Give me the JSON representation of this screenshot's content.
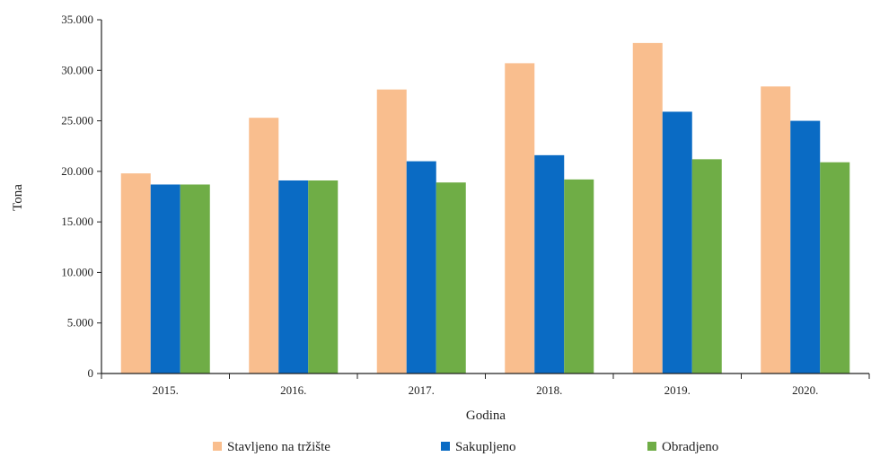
{
  "chart_data": {
    "type": "bar",
    "title": "",
    "xlabel": "Godina",
    "ylabel": "Tona",
    "categories": [
      "2015.",
      "2016.",
      "2017.",
      "2018.",
      "2019.",
      "2020."
    ],
    "ylim": [
      0,
      35000
    ],
    "yticks": [
      0,
      5000,
      10000,
      15000,
      20000,
      25000,
      30000,
      35000
    ],
    "ytick_labels": [
      "0",
      "5.000",
      "10.000",
      "15.000",
      "20.000",
      "25.000",
      "30.000",
      "35.000"
    ],
    "grid": false,
    "legend_position": "bottom",
    "series": [
      {
        "name": "Stavljeno na tržište",
        "color": "#F9BE8E",
        "values": [
          19800,
          25300,
          28100,
          30700,
          32700,
          28400
        ]
      },
      {
        "name": "Sakupljeno",
        "color": "#0A6BC4",
        "values": [
          18700,
          19100,
          21000,
          21600,
          25900,
          25000
        ]
      },
      {
        "name": "Obradjeno",
        "color": "#6FAD46",
        "values": [
          18700,
          19100,
          18900,
          19200,
          21200,
          20900
        ]
      }
    ]
  }
}
